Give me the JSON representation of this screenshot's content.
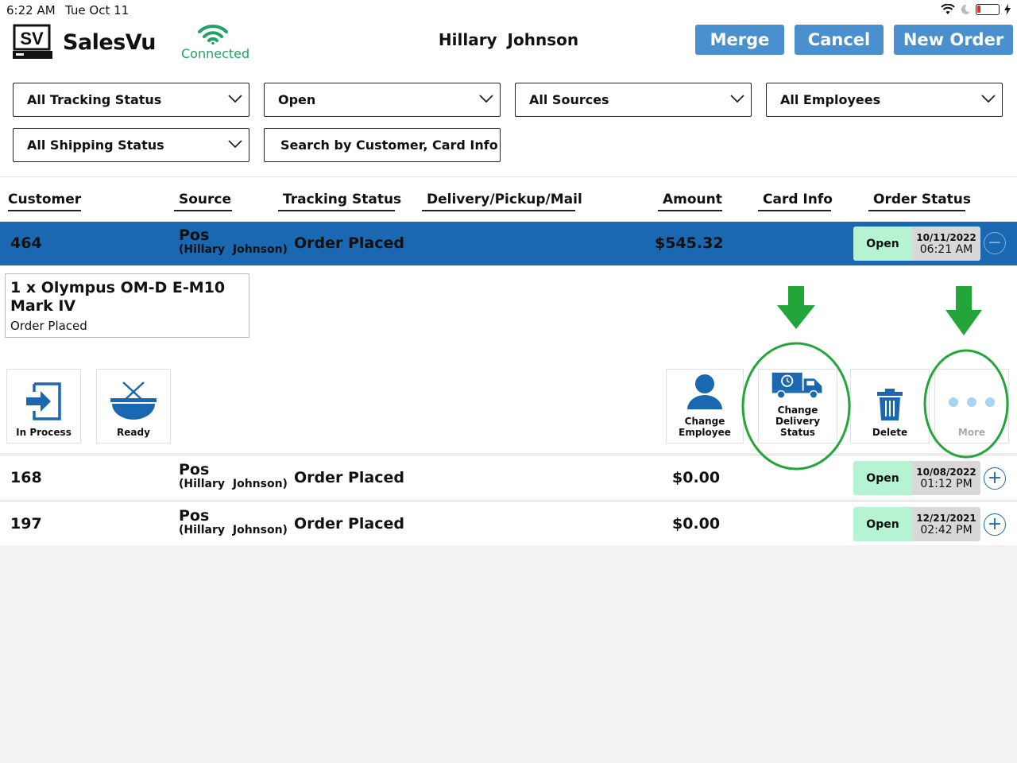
{
  "status_bar": {
    "time": "6:22 AM",
    "date": "Tue Oct 11"
  },
  "header": {
    "brand": "SalesVu",
    "logo_text": "SV",
    "connection": "Connected",
    "customer_name": "Hillary  Johnson",
    "buttons": {
      "merge": "Merge",
      "cancel": "Cancel",
      "new_order": "New Order"
    }
  },
  "filters": {
    "tracking_status": "All Tracking Status",
    "open_status": "Open",
    "sources": "All Sources",
    "employees": "All Employees",
    "shipping_status": "All Shipping Status",
    "search_placeholder": "Search by Customer, Card Info"
  },
  "columns": [
    "Customer",
    "Source",
    "Tracking Status",
    "Delivery/Pickup/Mail",
    "Amount",
    "Card Info",
    "Order Status"
  ],
  "orders": [
    {
      "id": "464",
      "source": "Pos",
      "source_sub": "(Hillary  Johnson)",
      "tracking": "Order Placed",
      "amount": "$545.32",
      "status": "Open",
      "date": "10/11/2022",
      "time": "06:21 AM",
      "expanded": true
    },
    {
      "id": "168",
      "source": "Pos",
      "source_sub": "(Hillary  Johnson)",
      "tracking": "Order Placed",
      "amount": "$0.00",
      "status": "Open",
      "date": "10/08/2022",
      "time": "01:12 PM",
      "expanded": false
    },
    {
      "id": "197",
      "source": "Pos",
      "source_sub": "(Hillary  Johnson)",
      "tracking": "Order Placed",
      "amount": "$0.00",
      "status": "Open",
      "date": "12/21/2021",
      "time": "02:42 PM",
      "expanded": false
    }
  ],
  "expanded_item": {
    "title": "1 x Olympus OM-D E-M10 Mark IV",
    "status": "Order Placed"
  },
  "actions": {
    "in_process": "In Process",
    "ready": "Ready",
    "change_employee": "Change Employee",
    "change_delivery_status": "Change Delivery Status",
    "delete": "Delete",
    "more": "More"
  },
  "colors": {
    "accent": "#4a90cf",
    "selected_row": "#1a68b1",
    "connected": "#21a365",
    "open_badge": "#b6f3d3",
    "annotation": "#22a63a"
  },
  "icons": [
    "wifi-icon",
    "moon-icon",
    "battery-icon",
    "charging-icon",
    "chevron-down-icon",
    "minus-circle-icon",
    "plus-circle-icon",
    "enter-arrow-icon",
    "bowl-icon",
    "person-icon",
    "delivery-truck-icon",
    "trash-icon",
    "more-dots-icon"
  ]
}
